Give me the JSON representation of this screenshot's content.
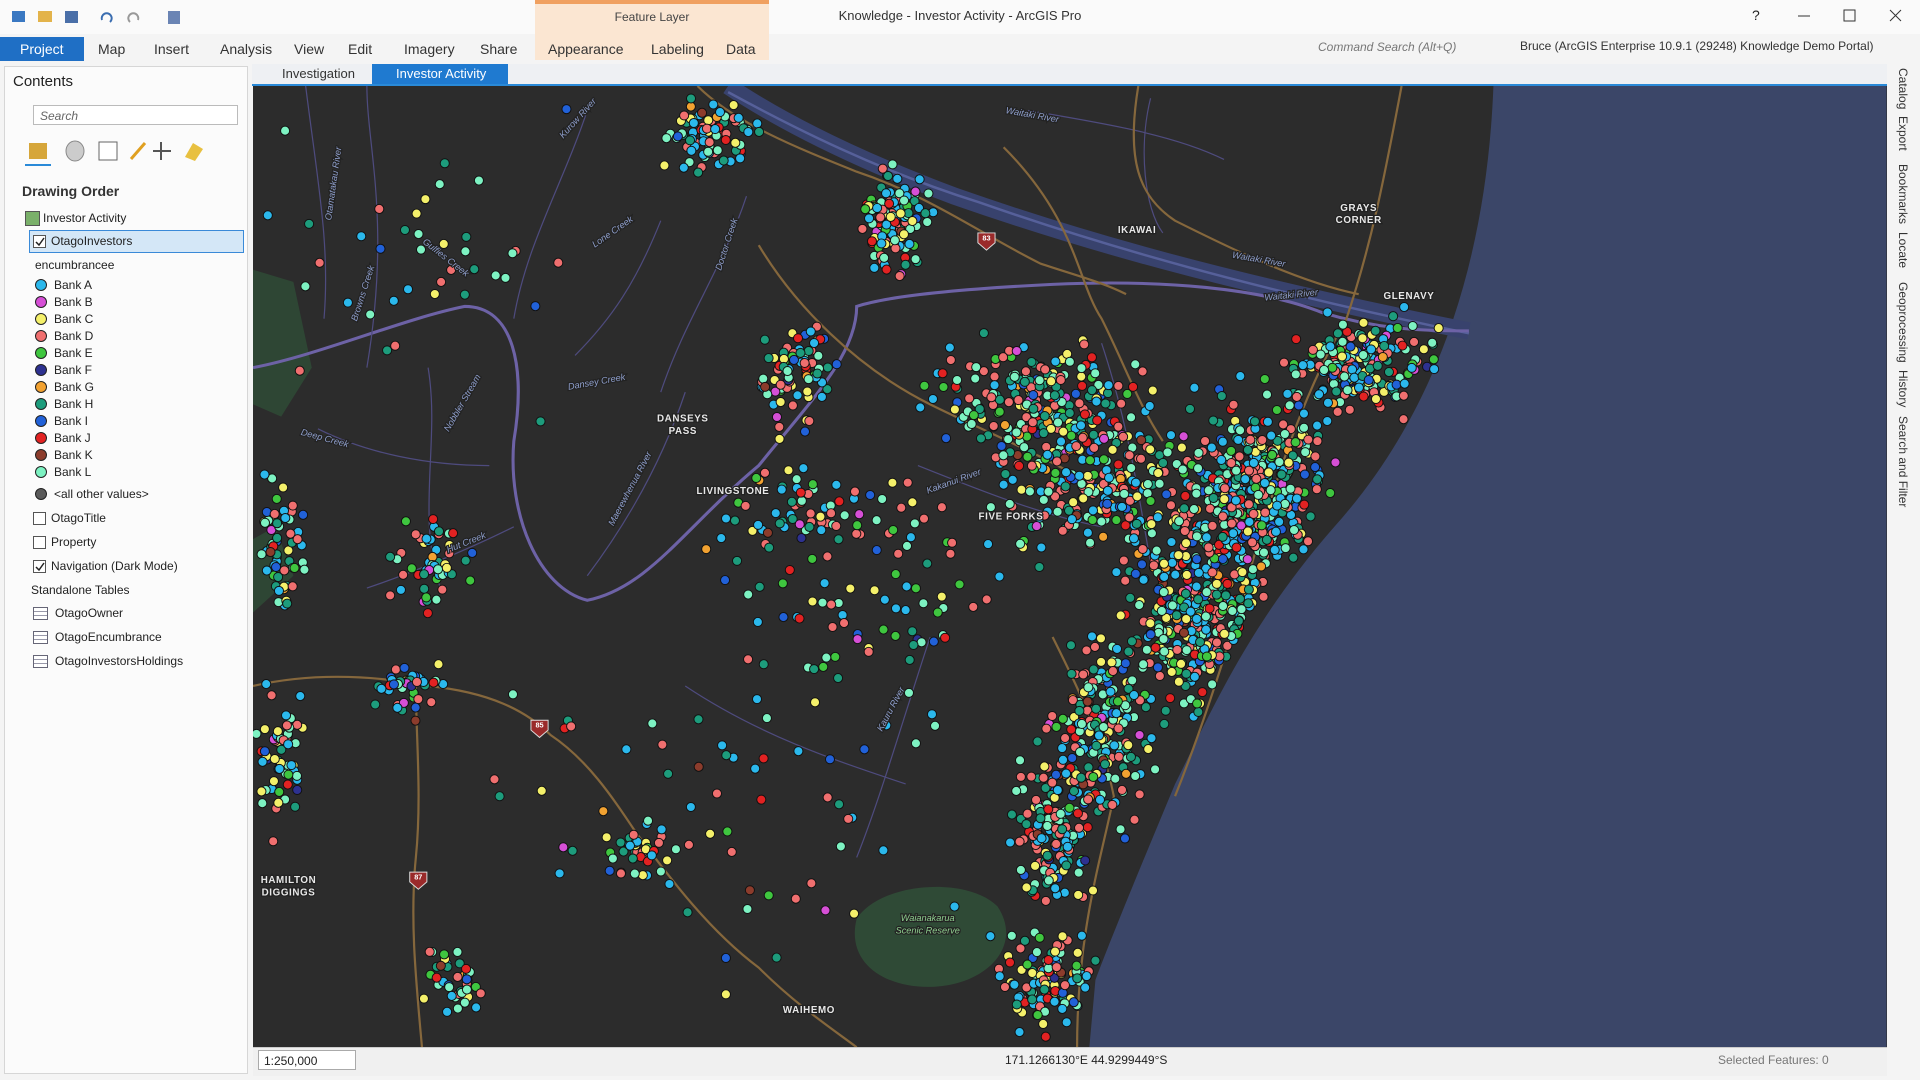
{
  "title_bar": {
    "context_group": "Feature Layer",
    "title": "Knowledge - Investor Activity - ArcGIS Pro",
    "help": "?"
  },
  "ribbon": {
    "tabs": [
      "Project",
      "Map",
      "Insert",
      "Analysis",
      "View",
      "Edit",
      "Imagery",
      "Share"
    ],
    "contextual_tabs": [
      "Appearance",
      "Labeling",
      "Data"
    ],
    "command_search": "Command Search (Alt+Q)",
    "user": "Bruce (ArcGIS Enterprise 10.9.1 (29248) Knowledge Demo Portal)"
  },
  "contents": {
    "title": "Contents",
    "search_placeholder": "Search",
    "heading": "Drawing Order",
    "map": "Investor Activity",
    "layer": {
      "name": "OtagoInvestors",
      "checked": true
    },
    "field": "encumbrancee",
    "classes": [
      {
        "label": "Bank A",
        "color": "#2bb8ec"
      },
      {
        "label": "Bank B",
        "color": "#d64fd6"
      },
      {
        "label": "Bank C",
        "color": "#f4f06a"
      },
      {
        "label": "Bank D",
        "color": "#f06f6f"
      },
      {
        "label": "Bank E",
        "color": "#3fc63f"
      },
      {
        "label": "Bank F",
        "color": "#2d3190"
      },
      {
        "label": "Bank G",
        "color": "#f2a231"
      },
      {
        "label": "Bank H",
        "color": "#1d9c7c"
      },
      {
        "label": "Bank I",
        "color": "#2161d8"
      },
      {
        "label": "Bank J",
        "color": "#e22222"
      },
      {
        "label": "Bank K",
        "color": "#8c3c2c"
      },
      {
        "label": "Bank L",
        "color": "#7df2c2"
      }
    ],
    "other_values": {
      "label": "<all other values>",
      "color": "#5a5a5a"
    },
    "layers": [
      {
        "name": "OtagoTitle",
        "checked": false
      },
      {
        "name": "Property",
        "checked": false
      },
      {
        "name": "Navigation (Dark Mode)",
        "checked": true
      }
    ],
    "tables_heading": "Standalone Tables",
    "tables": [
      "OtagoOwner",
      "OtagoEncumbrance",
      "OtagoInvestorsHoldings"
    ]
  },
  "view_tabs": [
    "Investigation",
    "Investor Activity"
  ],
  "side_panels": [
    "Catalog",
    "Export",
    "Bookmarks",
    "Locate",
    "Geoprocessing",
    "History",
    "Search and Filter"
  ],
  "map": {
    "labels": [
      {
        "lines": [
          "IKAWAI"
        ],
        "kind": "place"
      },
      {
        "lines": [
          "GRAYS",
          "CORNER"
        ],
        "kind": "place"
      },
      {
        "lines": [
          "GLENAVY"
        ],
        "kind": "place"
      },
      {
        "lines": [
          "DANSEYS",
          "PASS"
        ],
        "kind": "place"
      },
      {
        "lines": [
          "LIVINGSTONE"
        ],
        "kind": "place"
      },
      {
        "lines": [
          "FIVE FORKS"
        ],
        "kind": "place"
      },
      {
        "lines": [
          "WAIHEMO"
        ],
        "kind": "place"
      },
      {
        "lines": [
          "HAMILTON",
          "DIGGINGS"
        ],
        "kind": "place"
      },
      {
        "lines": [
          "Waitaki River"
        ],
        "kind": "water"
      },
      {
        "lines": [
          "Waitaki River"
        ],
        "kind": "water"
      },
      {
        "lines": [
          "Waitaki River"
        ],
        "kind": "water"
      },
      {
        "lines": [
          "Kurow River"
        ],
        "kind": "water"
      },
      {
        "lines": [
          "Lone Creek"
        ],
        "kind": "water"
      },
      {
        "lines": [
          "Doctor Creek"
        ],
        "kind": "water"
      },
      {
        "lines": [
          "Gulfies Creek"
        ],
        "kind": "water"
      },
      {
        "lines": [
          "Browns Creek"
        ],
        "kind": "water"
      },
      {
        "lines": [
          "Dansey Creek"
        ],
        "kind": "water"
      },
      {
        "lines": [
          "Kakanui River"
        ],
        "kind": "water"
      },
      {
        "lines": [
          "Maerewhenua River"
        ],
        "kind": "water"
      },
      {
        "lines": [
          "Hut Creek"
        ],
        "kind": "water"
      },
      {
        "lines": [
          "Kauru River"
        ],
        "kind": "water"
      },
      {
        "lines": [
          "Deep Creek"
        ],
        "kind": "water"
      },
      {
        "lines": [
          "Nobbler Stream"
        ],
        "kind": "water"
      },
      {
        "lines": [
          "Otamatakau River"
        ],
        "kind": "water"
      },
      {
        "lines": [
          "Waianakarua",
          "Scenic Reserve"
        ],
        "kind": "park"
      }
    ],
    "shields": [
      "83",
      "85",
      "87"
    ]
  },
  "status_bar": {
    "scale": "1:250,000",
    "coordinates": "171.1266130°E 44.9299449°S",
    "selected": "Selected Features: 0"
  }
}
